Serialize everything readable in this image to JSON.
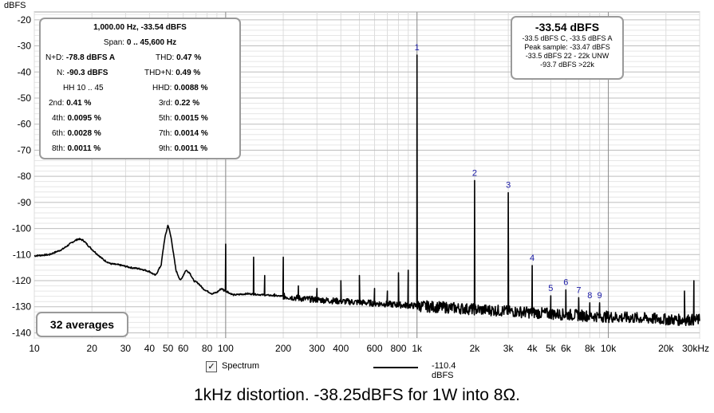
{
  "chart_data": {
    "type": "line",
    "ylabel": "dBFS",
    "xscale": "log",
    "xlim": [
      10,
      30000
    ],
    "ylim": [
      -142,
      -17
    ],
    "grid": true,
    "y_ticks": [
      -20,
      -30,
      -40,
      -50,
      -60,
      -70,
      -80,
      -90,
      -100,
      -110,
      -120,
      -130,
      -140
    ],
    "x_ticks": [
      {
        "value": 10,
        "label": "10"
      },
      {
        "value": 20,
        "label": "20"
      },
      {
        "value": 30,
        "label": "30"
      },
      {
        "value": 40,
        "label": "40"
      },
      {
        "value": 50,
        "label": "50"
      },
      {
        "value": 60,
        "label": "60"
      },
      {
        "value": 80,
        "label": "80"
      },
      {
        "value": 100,
        "label": "100"
      },
      {
        "value": 200,
        "label": "200"
      },
      {
        "value": 300,
        "label": "300"
      },
      {
        "value": 400,
        "label": "400"
      },
      {
        "value": 600,
        "label": "600"
      },
      {
        "value": 800,
        "label": "800"
      },
      {
        "value": 1000,
        "label": "1k"
      },
      {
        "value": 2000,
        "label": "2k"
      },
      {
        "value": 3000,
        "label": "3k"
      },
      {
        "value": 4000,
        "label": "4k"
      },
      {
        "value": 5000,
        "label": "5k"
      },
      {
        "value": 6000,
        "label": "6k"
      },
      {
        "value": 8000,
        "label": "8k"
      },
      {
        "value": 10000,
        "label": "10k"
      },
      {
        "value": 20000,
        "label": "20k"
      },
      {
        "value": 30000,
        "label": "30kHz"
      }
    ],
    "series": [
      {
        "name": "Spectrum",
        "color": "#000000",
        "floor": [
          [
            10,
            -110.5
          ],
          [
            12,
            -110
          ],
          [
            14,
            -108
          ],
          [
            16,
            -105
          ],
          [
            17,
            -104
          ],
          [
            18,
            -104.5
          ],
          [
            20,
            -108
          ],
          [
            23,
            -112
          ],
          [
            25,
            -113.5
          ],
          [
            28,
            -114
          ],
          [
            32,
            -115
          ],
          [
            36,
            -115.5
          ],
          [
            40,
            -116.5
          ],
          [
            43,
            -118
          ],
          [
            46,
            -114
          ],
          [
            48,
            -104
          ],
          [
            50,
            -98.5
          ],
          [
            52,
            -104
          ],
          [
            55,
            -116
          ],
          [
            58,
            -120
          ],
          [
            62,
            -116
          ],
          [
            65,
            -117
          ],
          [
            68,
            -120
          ],
          [
            72,
            -121
          ],
          [
            76,
            -123
          ],
          [
            80,
            -124
          ],
          [
            85,
            -125
          ],
          [
            90,
            -124.5
          ],
          [
            95,
            -123
          ],
          [
            100,
            -124
          ],
          [
            110,
            -125.5
          ],
          [
            130,
            -125
          ],
          [
            160,
            -125.5
          ],
          [
            200,
            -126
          ],
          [
            260,
            -127
          ],
          [
            330,
            -127.5
          ],
          [
            420,
            -128
          ],
          [
            550,
            -128.5
          ],
          [
            700,
            -129
          ],
          [
            900,
            -129.5
          ],
          [
            1200,
            -130
          ],
          [
            1600,
            -130.5
          ],
          [
            2000,
            -131
          ],
          [
            2700,
            -131.5
          ],
          [
            3500,
            -132
          ],
          [
            4500,
            -132.5
          ],
          [
            6000,
            -133
          ],
          [
            8000,
            -133.5
          ],
          [
            11000,
            -134
          ],
          [
            16000,
            -134.5
          ],
          [
            22000,
            -135
          ],
          [
            30000,
            -135
          ]
        ],
        "peaks": [
          [
            100,
            -106
          ],
          [
            120,
            -125
          ],
          [
            140,
            -111
          ],
          [
            160,
            -118
          ],
          [
            180,
            -125
          ],
          [
            200,
            -111
          ],
          [
            240,
            -122
          ],
          [
            300,
            -123
          ],
          [
            400,
            -120
          ],
          [
            500,
            -118
          ],
          [
            600,
            -123
          ],
          [
            700,
            -124
          ],
          [
            800,
            -117
          ],
          [
            900,
            -116
          ],
          [
            1000,
            -33.5
          ],
          [
            2000,
            -81.6
          ],
          [
            3000,
            -86.3
          ],
          [
            4000,
            -114.2
          ],
          [
            5000,
            -125.8
          ],
          [
            6000,
            -123.5
          ],
          [
            7000,
            -126.5
          ],
          [
            8000,
            -128.5
          ],
          [
            9000,
            -128.5
          ],
          [
            25000,
            -124
          ],
          [
            28000,
            -120
          ]
        ]
      }
    ],
    "harmonic_markers": [
      {
        "label": "1",
        "x": 1000,
        "y": -33.5
      },
      {
        "label": "2",
        "x": 2000,
        "y": -81.6
      },
      {
        "label": "3",
        "x": 3000,
        "y": -86.3
      },
      {
        "label": "4",
        "x": 4000,
        "y": -114.2
      },
      {
        "label": "5",
        "x": 5000,
        "y": -125.8
      },
      {
        "label": "6",
        "x": 6000,
        "y": -123.5
      },
      {
        "label": "7",
        "x": 7000,
        "y": -126.5
      },
      {
        "label": "8",
        "x": 8000,
        "y": -128.5
      },
      {
        "label": "9",
        "x": 9000,
        "y": -128.5
      }
    ]
  },
  "info_box": {
    "header": "1,000.00 Hz, -33.54 dBFS",
    "span_label": "Span:",
    "span_value": "0 .. 45,600 Hz",
    "nd_label": "N+D:",
    "nd_value": "-78.8 dBFS A",
    "thd_label": "THD:",
    "thd_value": "0.47 %",
    "n_label": "N:",
    "n_value": "-90.3 dBFS",
    "thdn_label": "THD+N:",
    "thdn_value": "0.49 %",
    "hh_label": "HH 10 .. 45",
    "hhd_label": "HHD:",
    "hhd_value": "0.0088 %",
    "h2_label": "2nd:",
    "h2_value": "0.41 %",
    "h3_label": "3rd:",
    "h3_value": "0.22 %",
    "h4_label": "4th:",
    "h4_value": "0.0095 %",
    "h5_label": "5th:",
    "h5_value": "0.0015 %",
    "h6_label": "6th:",
    "h6_value": "0.0028 %",
    "h7_label": "7th:",
    "h7_value": "0.0014 %",
    "h8_label": "8th:",
    "h8_value": "0.0011 %",
    "h9_label": "9th:",
    "h9_value": "0.0011 %"
  },
  "level_box": {
    "main": "-33.54 dBFS",
    "line1": "-33.5 dBFS C, -33.5 dBFS A",
    "line2": "Peak sample: -33.47 dBFS",
    "line3": "-33.5 dBFS 22 - 22k UNW",
    "line4": "-93.7 dBFS >22k"
  },
  "averages": "32 averages",
  "legend": {
    "check": "✓",
    "name": "Spectrum",
    "value": "-110.4 dBFS"
  },
  "caption": "1kHz distortion. -38.25dBFS for 1W into 8Ω."
}
